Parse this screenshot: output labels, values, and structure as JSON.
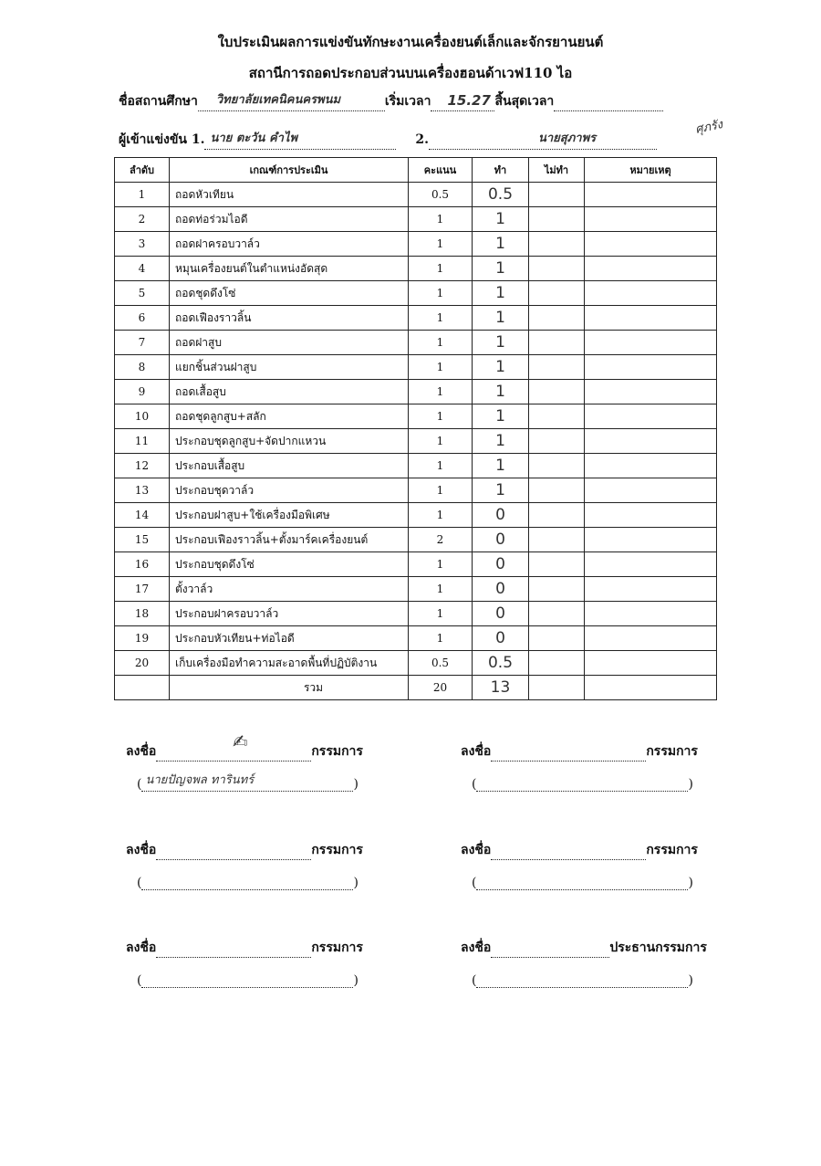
{
  "header": {
    "title": "ใบประเมินผลการแข่งขันทักษะงานเครื่องยนต์เล็กและจักรยานยนต์",
    "subtitle": "สถานีการถอดประกอบส่วนบนเครื่องฮอนด้าเวฟ110 ไอ"
  },
  "form": {
    "school_label": "ชื่อสถานศึกษา",
    "school_value": "วิทยาลัยเทคนิคนครพนม",
    "start_label": "เริ่มเวลา",
    "start_value": "15.27",
    "end_label": "สิ้นสุดเวลา",
    "end_value": "",
    "competitor_label": "ผู้เข้าแข่งขัน 1.",
    "competitor1": "นาย ตะวัน  คำไพ",
    "competitor2_label": "2.",
    "competitor2": "นายสุภาพร",
    "competitor2_extra": "ศุภรัง"
  },
  "table": {
    "headers": [
      "ลำดับ",
      "เกณฑ์การประเมิน",
      "คะแนน",
      "ทำ",
      "ไม่ทำ",
      "หมายเหตุ"
    ],
    "rows": [
      {
        "no": "1",
        "item": "ถอดหัวเทียน",
        "score": "0.5",
        "done": "0.5"
      },
      {
        "no": "2",
        "item": "ถอดท่อร่วมไอดี",
        "score": "1",
        "done": "1"
      },
      {
        "no": "3",
        "item": "ถอดฝาครอบวาล์ว",
        "score": "1",
        "done": "1"
      },
      {
        "no": "4",
        "item": "หมุนเครื่องยนต์ในตำแหน่งอัดสุด",
        "score": "1",
        "done": "1"
      },
      {
        "no": "5",
        "item": "ถอดชุดดึงโซ่",
        "score": "1",
        "done": "1"
      },
      {
        "no": "6",
        "item": "ถอดเฟืองราวลิ้น",
        "score": "1",
        "done": "1"
      },
      {
        "no": "7",
        "item": "ถอดฝาสูบ",
        "score": "1",
        "done": "1"
      },
      {
        "no": "8",
        "item": "แยกชิ้นส่วนฝาสูบ",
        "score": "1",
        "done": "1"
      },
      {
        "no": "9",
        "item": "ถอดเสื้อสูบ",
        "score": "1",
        "done": "1"
      },
      {
        "no": "10",
        "item": "ถอดชุดลูกสูบ+สลัก",
        "score": "1",
        "done": "1"
      },
      {
        "no": "11",
        "item": "ประกอบชุดลูกสูบ+จัดปากแหวน",
        "score": "1",
        "done": "1"
      },
      {
        "no": "12",
        "item": "ประกอบเสื้อสูบ",
        "score": "1",
        "done": "1"
      },
      {
        "no": "13",
        "item": "ประกอบชุดวาล์ว",
        "score": "1",
        "done": "1"
      },
      {
        "no": "14",
        "item": "ประกอบฝาสูบ+ใช้เครื่องมือพิเศษ",
        "score": "1",
        "done": "0"
      },
      {
        "no": "15",
        "item": "ประกอบเฟืองราวลิ้น+ตั้งมาร์คเครื่องยนต์",
        "score": "2",
        "done": "0"
      },
      {
        "no": "16",
        "item": "ประกอบชุดดึงโซ่",
        "score": "1",
        "done": "0"
      },
      {
        "no": "17",
        "item": "ตั้งวาล์ว",
        "score": "1",
        "done": "0"
      },
      {
        "no": "18",
        "item": "ประกอบฝาครอบวาล์ว",
        "score": "1",
        "done": "0"
      },
      {
        "no": "19",
        "item": "ประกอบหัวเทียน+ท่อไอดี",
        "score": "1",
        "done": "0"
      },
      {
        "no": "20",
        "item": "เก็บเครื่องมือทำความสะอาดพื้นที่ปฏิบัติงาน",
        "score": "0.5",
        "done": "0.5"
      }
    ],
    "total_label": "รวม",
    "total_score": "20",
    "total_done": "13"
  },
  "signatures": {
    "sign_label": "ลงชื่อ",
    "committee": "กรรมการ",
    "chair": "ประธานกรรมการ",
    "sig1_name": "นายปัญจพล  ทารินทร์"
  }
}
